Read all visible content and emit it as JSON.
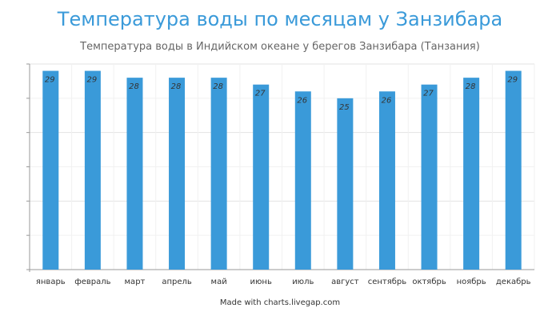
{
  "chart_data": {
    "type": "bar",
    "title": "Температура воды по месяцам у Занзибара",
    "subtitle": "Температура воды в Индийском океане у берегов Занзибара (Танзания)",
    "categories": [
      "январь",
      "февраль",
      "март",
      "апрель",
      "май",
      "июнь",
      "июль",
      "август",
      "сентябрь",
      "октябрь",
      "ноябрь",
      "декабрь"
    ],
    "values": [
      29,
      29,
      28,
      28,
      28,
      27,
      26,
      25,
      26,
      27,
      28,
      29
    ],
    "xlabel": "",
    "ylabel": "",
    "ylim": [
      0,
      30
    ],
    "grid": true,
    "legend": "none",
    "bar_color": "#3a9ad9",
    "title_color": "#3a9ad9"
  },
  "credit": "Made with charts.livegap.com"
}
